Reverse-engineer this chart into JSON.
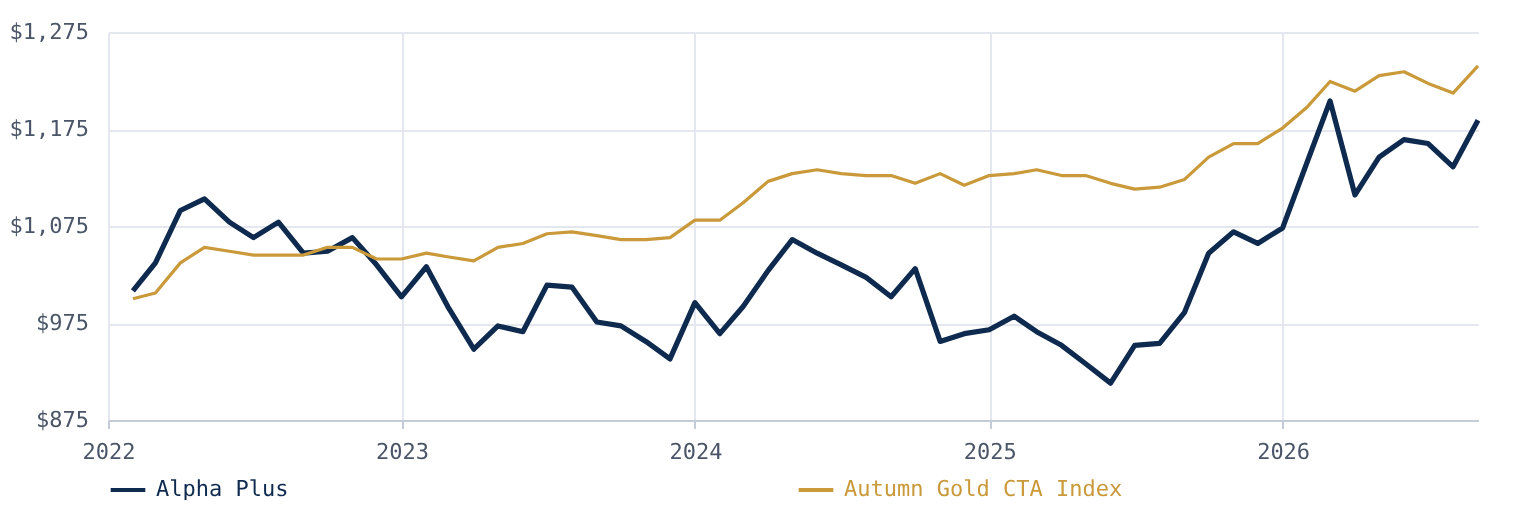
{
  "chart_data": {
    "type": "line",
    "x": [
      "2022-02",
      "2022-03",
      "2022-04",
      "2022-05",
      "2022-06",
      "2022-07",
      "2022-08",
      "2022-09",
      "2022-10",
      "2022-11",
      "2022-12",
      "2023-01",
      "2023-02",
      "2023-03",
      "2023-04",
      "2023-05",
      "2023-06",
      "2023-07",
      "2023-08",
      "2023-09",
      "2023-10",
      "2023-11",
      "2023-12",
      "2024-01",
      "2024-02",
      "2024-03",
      "2024-04",
      "2024-05",
      "2024-06",
      "2024-07",
      "2024-08",
      "2024-09",
      "2024-10",
      "2024-11",
      "2024-12",
      "2025-01",
      "2025-02",
      "2025-03",
      "2025-04",
      "2025-05",
      "2025-06",
      "2025-07",
      "2025-08",
      "2025-09",
      "2025-10",
      "2025-11",
      "2025-12",
      "2026-01",
      "2026-02",
      "2026-03",
      "2026-04",
      "2026-05",
      "2026-06",
      "2026-07",
      "2026-08",
      "2026-09"
    ],
    "series": [
      {
        "name": "Alpha Plus",
        "color": "#0e2a4f",
        "values": [
          1008,
          1037,
          1091,
          1103,
          1079,
          1063,
          1079,
          1047,
          1049,
          1063,
          1035,
          1002,
          1033,
          990,
          948,
          972,
          966,
          1014,
          1012,
          976,
          972,
          956,
          938,
          996,
          964,
          992,
          1029,
          1061,
          1047,
          1035,
          1022,
          1002,
          1031,
          956,
          964,
          968,
          982,
          966,
          952,
          933,
          913,
          952,
          954,
          986,
          1047,
          1069,
          1057,
          1073,
          1142,
          1204,
          1107,
          1146,
          1164,
          1160,
          1136,
          1184
        ]
      },
      {
        "name": "Autumn Gold CTA Index",
        "color": "#c9993a",
        "values": [
          1000,
          1006,
          1037,
          1053,
          1049,
          1045,
          1045,
          1045,
          1053,
          1053,
          1041,
          1041,
          1047,
          1043,
          1039,
          1053,
          1057,
          1067,
          1069,
          1065,
          1061,
          1061,
          1063,
          1081,
          1081,
          1099,
          1121,
          1129,
          1133,
          1129,
          1127,
          1127,
          1119,
          1129,
          1117,
          1127,
          1129,
          1133,
          1127,
          1127,
          1119,
          1113,
          1115,
          1123,
          1146,
          1160,
          1160,
          1176,
          1198,
          1224,
          1214,
          1230,
          1234,
          1222,
          1212,
          1240
        ]
      }
    ],
    "xlim": [
      "2022-01",
      "2026-09"
    ],
    "xticks": [
      "2022",
      "2023",
      "2024",
      "2025",
      "2026"
    ],
    "ylim": [
      875,
      1275
    ],
    "yticks": [
      {
        "value": 875,
        "label": "$875"
      },
      {
        "value": 975,
        "label": "$975"
      },
      {
        "value": 1075,
        "label": "$1,075"
      },
      {
        "value": 1175,
        "label": "$1,175"
      },
      {
        "value": 1275,
        "label": "$1,275"
      }
    ],
    "grid": true,
    "legend": "bottom",
    "marker": "none",
    "line_style": "solid"
  }
}
